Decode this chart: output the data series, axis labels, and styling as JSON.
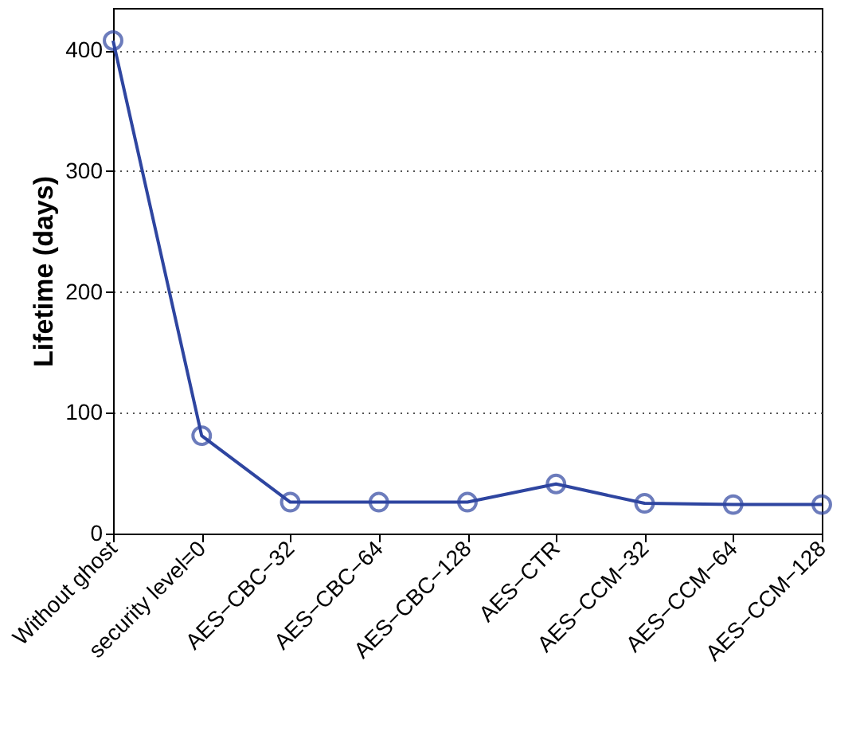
{
  "chart_data": {
    "type": "line",
    "ylabel": "Lifetime (days)",
    "categories": [
      "Without ghost",
      "security level=0",
      "AES−CBC−32",
      "AES−CBC−64",
      "AES−CBC−128",
      "AES−CTR",
      "AES−CCM−32",
      "AES−CCM−64",
      "AES−CCM−128"
    ],
    "series": [
      {
        "color": "#2e45a0",
        "values": [
          408,
          81,
          26,
          26,
          26,
          41,
          25,
          24,
          24
        ]
      }
    ],
    "ylim": [
      0,
      435
    ],
    "yticks": [
      0,
      100,
      200,
      300,
      400
    ],
    "grid": "y",
    "marker": "circle",
    "line_style": "solid",
    "legend": false
  }
}
